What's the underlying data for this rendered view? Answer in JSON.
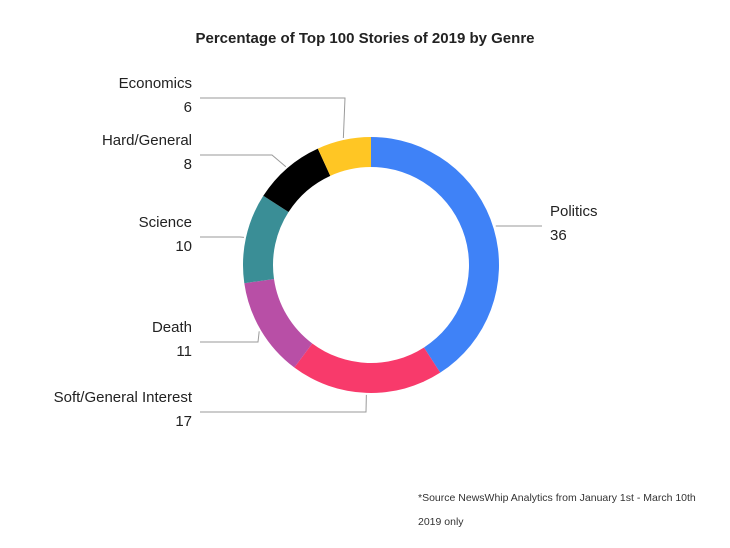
{
  "chart_data": {
    "type": "pie",
    "variant": "donut",
    "title": "Percentage of Top 100 Stories of 2019 by Genre",
    "categories": [
      "Politics",
      "Soft/General Interest",
      "Death",
      "Science",
      "Hard/General",
      "Economics"
    ],
    "values": [
      36,
      17,
      11,
      10,
      8,
      6
    ],
    "colors": [
      "#3F82F7",
      "#F83A6B",
      "#B84FA6",
      "#3A8E96",
      "#000000",
      "#FFC624"
    ],
    "legend": "none",
    "data_labels": "outside-with-leader-lines"
  },
  "source_note": {
    "line1": "*Source NewsWhip Analytics from January 1st - March 10th",
    "line2": "2019 only"
  }
}
